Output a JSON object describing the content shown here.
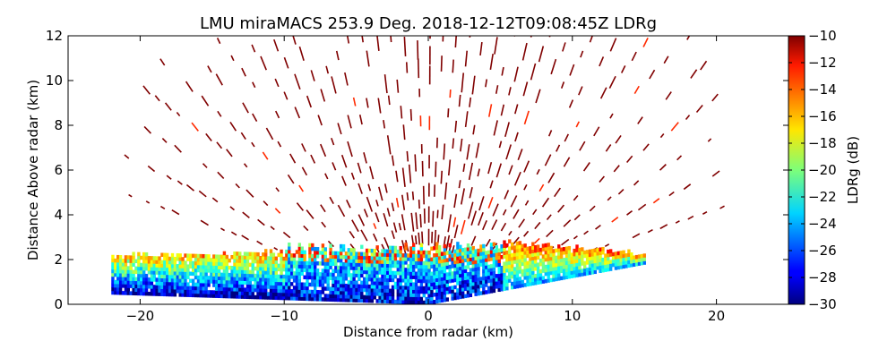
{
  "chart_data": {
    "type": "heatmap",
    "title": "LMU miraMACS 253.9 Deg. 2018-12-12T09:08:45Z  LDRg",
    "xlabel": "Distance from radar (km)",
    "ylabel": "Distance Above radar  (km)",
    "xlim": [
      -25,
      25
    ],
    "ylim": [
      0,
      12
    ],
    "xticks": [
      -20,
      -10,
      0,
      10,
      20
    ],
    "yticks": [
      0,
      2,
      4,
      6,
      8,
      10,
      12
    ],
    "grid": false,
    "colorbar": {
      "label": "LDRg (dB)",
      "range": [
        -30,
        -10
      ],
      "ticks": [
        -10,
        -12,
        -14,
        -16,
        -18,
        -20,
        -22,
        -24,
        -26,
        -28,
        -30
      ],
      "colormap": "jet"
    },
    "features": [
      {
        "name": "low-level LDR band",
        "x_range_km": [
          -22,
          15
        ],
        "top_km": [
          2.6,
          2.2
        ],
        "ldr_range_db": [
          -30,
          -14
        ]
      },
      {
        "name": "sparse upper returns",
        "max_range_km": 22,
        "ldr_db": -10
      }
    ]
  }
}
